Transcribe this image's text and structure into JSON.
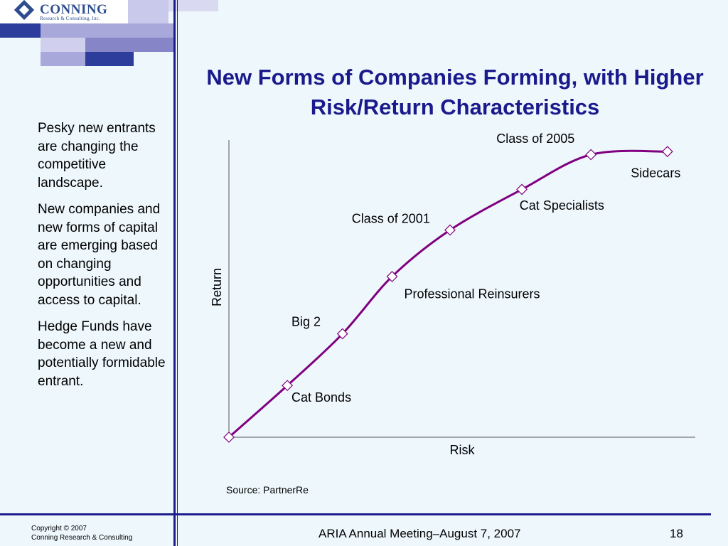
{
  "logo": {
    "name": "CONNING",
    "subtitle": "Research & Consulting, Inc."
  },
  "title": "New Forms of Companies Forming, with Higher Risk/Return Characteristics",
  "sidebar": {
    "paragraphs": [
      "Pesky new entrants are changing the competitive landscape.",
      "New companies and new forms of capital are emerging based on changing opportunities and access to capital.",
      "Hedge Funds have become a new and potentially formidable entrant."
    ]
  },
  "source": "Source: PartnerRe",
  "footer": {
    "copyright_line1": "Copyright © 2007",
    "copyright_line2": "Conning Research & Consulting",
    "meeting": "ARIA Annual Meeting–August 7, 2007",
    "page": "18"
  },
  "colors": {
    "background": "#eef8fc",
    "accent": "#1d1c8c",
    "curve": "#800080",
    "marker_fill": "#ffffff"
  },
  "chart_data": {
    "type": "line",
    "xlabel": "Risk",
    "ylabel": "Return",
    "xlim": [
      0,
      100
    ],
    "ylim": [
      0,
      100
    ],
    "grid": false,
    "legend": "none",
    "series": [
      {
        "points": [
          {
            "x": 0,
            "y": 0
          },
          {
            "x": 12.6,
            "y": 16.8
          },
          {
            "x": 24.5,
            "y": 33.6
          },
          {
            "x": 35.2,
            "y": 52.2
          },
          {
            "x": 47.7,
            "y": 67.3
          },
          {
            "x": 63.2,
            "y": 80.5
          },
          {
            "x": 78.1,
            "y": 91.8
          },
          {
            "x": 94.6,
            "y": 92.8
          }
        ]
      }
    ],
    "annotations": [
      {
        "text": "Class of 2005",
        "x": 57.7,
        "y": 95.6
      },
      {
        "text": "Sidecars",
        "x": 86.7,
        "y": 84.4
      },
      {
        "text": "Cat Specialists",
        "x": 62.7,
        "y": 73.9
      },
      {
        "text": "Class of 2001",
        "x": 26.5,
        "y": 69.6
      },
      {
        "text": "Professional Reinsurers",
        "x": 37.8,
        "y": 45.1
      },
      {
        "text": "Big 2",
        "x": 13.5,
        "y": 36.1
      },
      {
        "text": "Cat Bonds",
        "x": 13.5,
        "y": 11.6
      }
    ]
  }
}
